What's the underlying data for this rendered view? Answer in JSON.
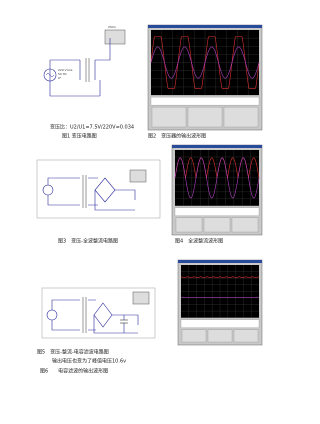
{
  "figure1": {
    "labels": [
      "XSC1",
      "220 Vrms",
      "50 Hz",
      "0°"
    ],
    "ratio": "变压比：U2/U1=7.5V/220V=0.034",
    "caption": "图1 变压电路图"
  },
  "figure2": {
    "caption": "图2　变压器的输出波形图"
  },
  "figure3": {
    "caption": "图3　变压-全波整流电路图"
  },
  "figure4": {
    "caption": "图4　全波整流波形图"
  },
  "figure5": {
    "caption": "图5　变压-整流-电容滤波电路图",
    "note": "输出电压也变为了峰值电压10.6v"
  },
  "figure6": {
    "caption": "图6　　电容滤波的输出波形图"
  }
}
